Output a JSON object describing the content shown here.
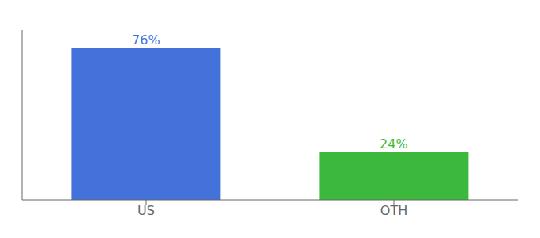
{
  "chart_data": {
    "type": "bar",
    "categories": [
      "US",
      "OTH"
    ],
    "values": [
      76,
      24
    ],
    "value_labels": [
      "76%",
      "24%"
    ],
    "colors": [
      "#4472db",
      "#3cb93c"
    ],
    "ylim": [
      0,
      85
    ],
    "data_labels": true,
    "tick_labels": "x",
    "grid": false
  }
}
